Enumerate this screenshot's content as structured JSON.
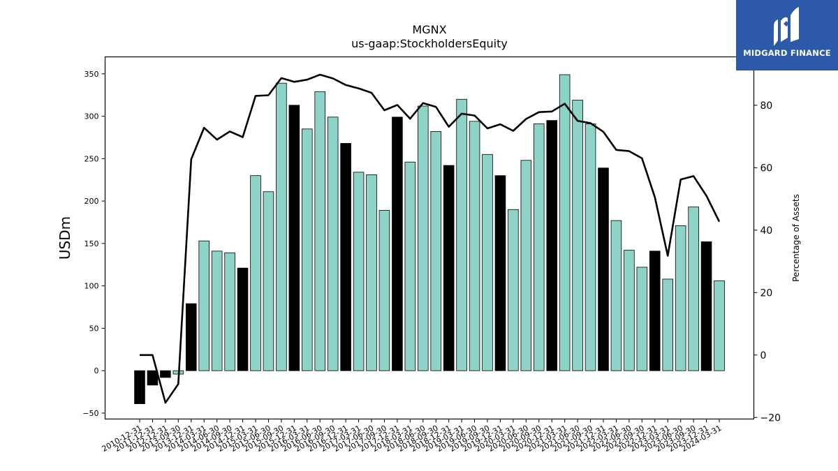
{
  "chart_data": {
    "type": "bar",
    "title": "MGNX",
    "subtitle": "us-gaap:StockholdersEquity",
    "ylabel": "USDm",
    "y2label": "Percentage of Assets",
    "ylim": [
      -57,
      370
    ],
    "y2lim": [
      -20.5,
      95.5
    ],
    "yticks": [
      -50,
      0,
      50,
      100,
      150,
      200,
      250,
      300,
      350
    ],
    "y2ticks": [
      -20,
      0,
      20,
      40,
      60,
      80
    ],
    "categories": [
      "2010-12-31",
      "2011-12-31",
      "2012-12-31",
      "2013-09-30",
      "2013-12-31",
      "2014-03-31",
      "2014-06-30",
      "2014-09-30",
      "2014-12-31",
      "2015-03-31",
      "2015-06-30",
      "2015-09-30",
      "2015-12-31",
      "2016-03-31",
      "2016-06-30",
      "2016-09-30",
      "2016-12-31",
      "2017-03-31",
      "2017-06-30",
      "2017-09-30",
      "2017-12-31",
      "2018-03-31",
      "2018-06-30",
      "2018-09-30",
      "2018-12-31",
      "2019-03-31",
      "2019-06-30",
      "2019-09-30",
      "2019-12-31",
      "2020-03-31",
      "2020-06-30",
      "2020-09-30",
      "2020-12-31",
      "2021-03-31",
      "2021-06-30",
      "2021-09-30",
      "2021-12-31",
      "2022-03-31",
      "2022-06-30",
      "2022-09-30",
      "2022-12-31",
      "2023-03-31",
      "2023-06-30",
      "2023-09-30",
      "2023-12-31",
      "2024-03-31"
    ],
    "series": [
      {
        "type": "bar",
        "values": [
          -39,
          -17,
          -8,
          -4,
          79,
          153,
          141,
          139,
          121,
          230,
          211,
          339,
          313,
          285,
          329,
          299,
          268,
          234,
          231,
          189,
          299,
          246,
          312,
          282,
          242,
          320,
          294,
          255,
          230,
          190,
          248,
          291,
          295,
          349,
          319,
          291,
          239,
          177,
          142,
          122,
          141,
          108,
          171,
          193,
          152,
          106
        ],
        "annual_year_end": [
          true,
          true,
          true,
          false,
          true,
          false,
          false,
          false,
          true,
          false,
          false,
          false,
          true,
          false,
          false,
          false,
          true,
          false,
          false,
          false,
          true,
          false,
          false,
          false,
          true,
          false,
          false,
          false,
          true,
          false,
          false,
          false,
          true,
          false,
          false,
          false,
          true,
          false,
          false,
          false,
          true,
          false,
          false,
          false,
          true,
          false
        ]
      },
      {
        "type": "line",
        "axis": "right",
        "values": [
          0,
          0,
          -15.3,
          -9.3,
          62.7,
          72.8,
          69,
          71.6,
          69.8,
          83,
          83.2,
          88.7,
          87.5,
          88.2,
          89.8,
          88.6,
          86.5,
          85.4,
          84,
          78.4,
          80.1,
          75.7,
          80.7,
          79.5,
          73.1,
          77.3,
          76.7,
          72.6,
          73.9,
          71.8,
          75.6,
          77.8,
          78,
          80.5,
          75,
          74.3,
          71.5,
          65.7,
          65.3,
          63,
          50.5,
          31.8,
          56.2,
          57.3,
          51,
          42.7
        ]
      }
    ],
    "colors": {
      "bar_quarter": "#8dd3c7",
      "bar_year_end": "#000000",
      "line": "#000000"
    },
    "grid": false,
    "legend": "none"
  },
  "logo": {
    "text": "MIDGARD FINANCE",
    "background": "#2c5aa8"
  }
}
